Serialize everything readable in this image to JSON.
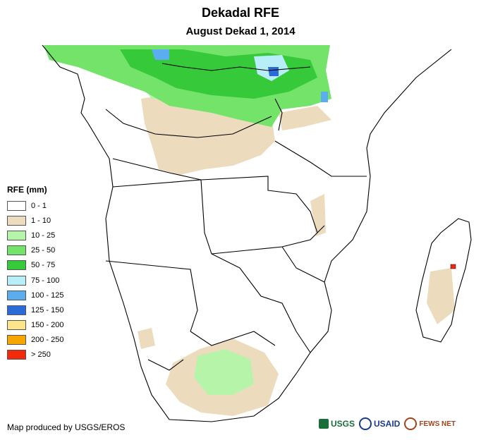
{
  "header": {
    "title": "Dekadal RFE",
    "subtitle": "August Dekad 1, 2014"
  },
  "legend": {
    "title": "RFE (mm)",
    "items": [
      {
        "label": "0 - 1",
        "color": "#ffffff"
      },
      {
        "label": "1 - 10",
        "color": "#ecdcbd"
      },
      {
        "label": "10 - 25",
        "color": "#b6f5a9"
      },
      {
        "label": "25 - 50",
        "color": "#74e36a"
      },
      {
        "label": "50 - 75",
        "color": "#36c93a"
      },
      {
        "label": "75 - 100",
        "color": "#b7eef7"
      },
      {
        "label": "100 - 125",
        "color": "#5aaef0"
      },
      {
        "label": "125 - 150",
        "color": "#2a6bd8"
      },
      {
        "label": "150 - 200",
        "color": "#fce58a"
      },
      {
        "label": "200 - 250",
        "color": "#f7a600"
      },
      {
        "label": "> 250",
        "color": "#f22a0a"
      }
    ]
  },
  "credit": "Map produced by USGS/EROS",
  "logos": {
    "usgs": "USGS",
    "usaid": "USAID",
    "fews": "FEWS NET"
  }
}
